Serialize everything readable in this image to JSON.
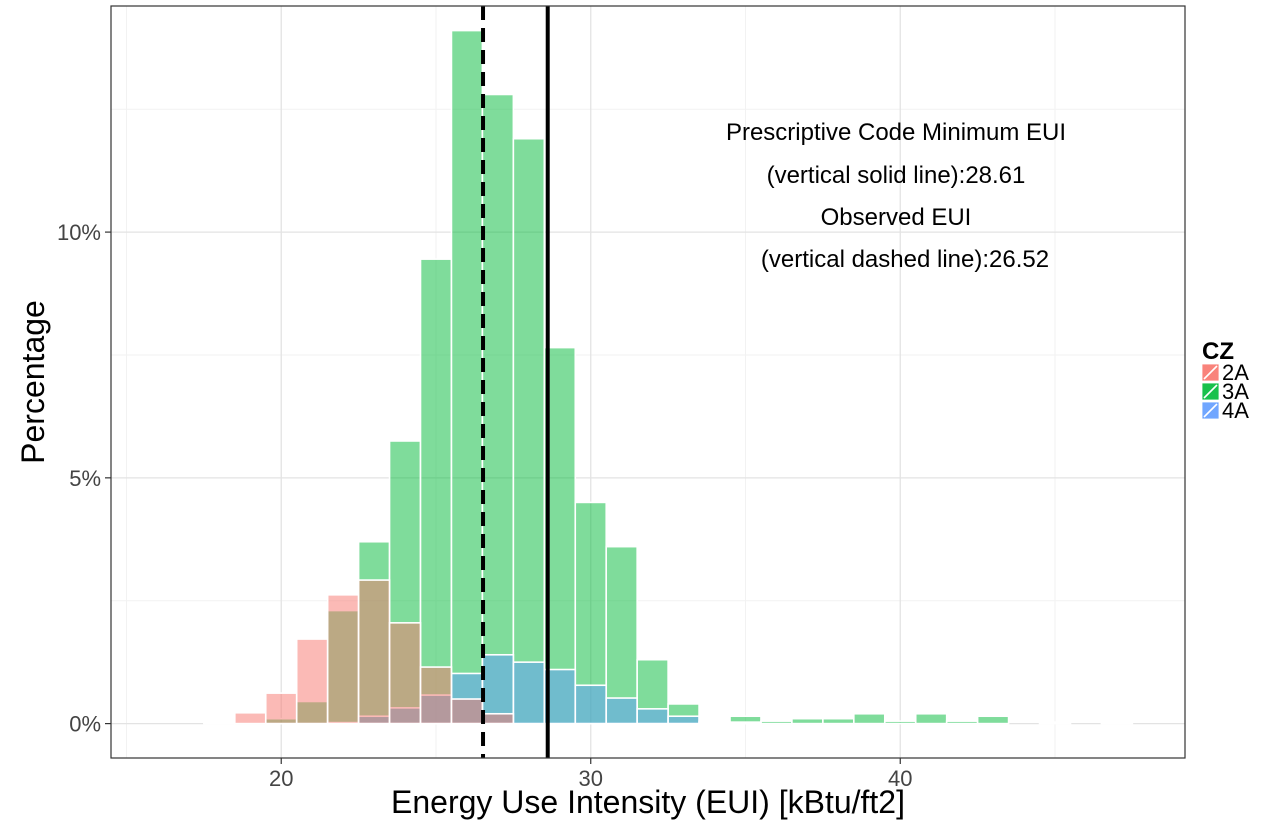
{
  "chart_data": {
    "type": "bar",
    "xlabel": "Energy Use Intensity (EUI) [kBtu/ft2]",
    "ylabel": "Percentage",
    "xlim": [
      14.5,
      49.2
    ],
    "ylim": [
      -0.7,
      14.6
    ],
    "x_ticks": [
      20,
      30,
      40
    ],
    "x_tick_labels": [
      "20",
      "30",
      "40"
    ],
    "y_ticks": [
      0,
      5,
      10
    ],
    "y_tick_labels": [
      "0%",
      "5%",
      "10%"
    ],
    "grid": true,
    "bin_width": 1,
    "legend": {
      "title": "CZ",
      "position": "right"
    },
    "series": [
      {
        "name": "3A",
        "color": "#00BA38",
        "x": [
          16,
          17,
          18,
          19,
          20,
          21,
          22,
          23,
          24,
          25,
          26,
          27,
          28,
          29,
          30,
          31,
          32,
          33,
          34,
          35,
          36,
          37,
          38,
          39,
          40,
          41,
          42,
          43,
          44,
          45,
          46,
          47,
          48
        ],
        "values": [
          0,
          0,
          0,
          0,
          0.1,
          0.45,
          2.3,
          3.7,
          5.75,
          9.45,
          14.1,
          12.8,
          11.9,
          7.65,
          4.5,
          3.6,
          1.3,
          0.4,
          0.05,
          0.15,
          0.05,
          0.1,
          0.1,
          0.2,
          0.05,
          0.2,
          0.05,
          0.15,
          0,
          0.03,
          0,
          0.03,
          0
        ]
      },
      {
        "name": "4A",
        "color": "#619CFF",
        "x": [
          16,
          17,
          18,
          19,
          20,
          21,
          22,
          23,
          24,
          25,
          26,
          27,
          28,
          29,
          30,
          31,
          32,
          33,
          34,
          35,
          36,
          37,
          38,
          39,
          40,
          41,
          42,
          43,
          44,
          45,
          46,
          47,
          48
        ],
        "values": [
          0,
          0,
          0,
          0,
          0,
          0,
          0.02,
          0.15,
          0.32,
          0.58,
          1.02,
          1.4,
          1.25,
          1.1,
          0.78,
          0.52,
          0.3,
          0.15,
          0.03,
          0.03,
          0,
          0,
          0,
          0,
          0,
          0,
          0,
          0,
          0,
          0,
          0,
          0,
          0
        ]
      },
      {
        "name": "2A",
        "color": "#F8766D",
        "x": [
          16,
          17,
          18,
          19,
          20,
          21,
          22,
          23,
          24,
          25,
          26,
          27,
          28,
          29,
          30,
          31,
          32,
          33,
          34,
          35,
          36,
          37,
          38,
          39,
          40,
          41,
          42,
          43,
          44,
          45,
          46,
          47,
          48
        ],
        "values": [
          0,
          0,
          0.03,
          0.22,
          0.62,
          1.72,
          2.62,
          2.92,
          2.05,
          1.15,
          0.5,
          0.2,
          0,
          0,
          0,
          0,
          0,
          0,
          0,
          0,
          0,
          0,
          0,
          0,
          0,
          0,
          0,
          0,
          0,
          0,
          0,
          0,
          0
        ]
      }
    ],
    "vlines": [
      {
        "x": 28.61,
        "style": "solid"
      },
      {
        "x": 26.52,
        "style": "dashed"
      }
    ],
    "annotations": [
      "Prescriptive Code Minimum EUI",
      "(vertical solid line):28.61",
      "Observed EUI",
      "(vertical dashed line):26.52"
    ]
  }
}
